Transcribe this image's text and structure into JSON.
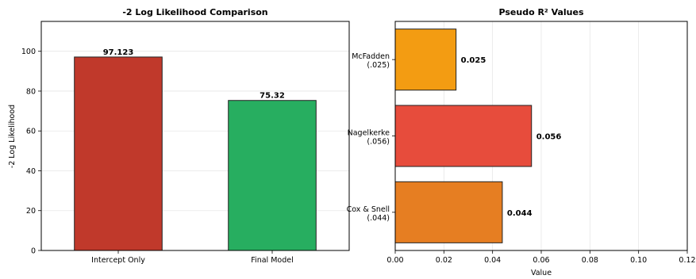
{
  "chart_data": [
    {
      "type": "bar",
      "title": "-2 Log Likelihood Comparison",
      "xlabel": "",
      "ylabel": "-2 Log Likelihood",
      "categories": [
        "Intercept Only",
        "Final Model"
      ],
      "values": [
        97.123,
        75.32
      ],
      "value_labels": [
        "97.123",
        "75.32"
      ],
      "colors": [
        "#c0392b",
        "#27ae60"
      ],
      "ylim": [
        0,
        115
      ],
      "yticks": [
        0,
        20,
        40,
        60,
        80,
        100
      ],
      "grid": true
    },
    {
      "type": "bar",
      "orientation": "horizontal",
      "title": "Pseudo R² Values",
      "xlabel": "Value",
      "ylabel": "",
      "categories": [
        "McFadden\n(.025)",
        "Nagelkerke\n(.056)",
        "Cox & Snell\n(.044)"
      ],
      "values": [
        0.025,
        0.056,
        0.044
      ],
      "value_labels": [
        "0.025",
        "0.056",
        "0.044"
      ],
      "colors": [
        "#f39c12",
        "#e74c3c",
        "#e67e22"
      ],
      "xlim": [
        0,
        0.12
      ],
      "xticks": [
        "0.00",
        "0.02",
        "0.04",
        "0.06",
        "0.08",
        "0.10",
        "0.12"
      ],
      "grid": true
    }
  ]
}
